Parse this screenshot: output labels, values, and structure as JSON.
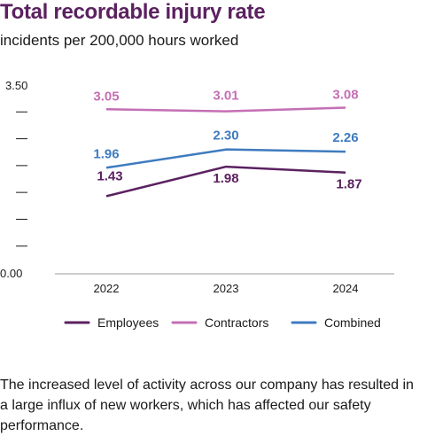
{
  "header": {
    "title": "Total recordable injury rate",
    "subtitle": "incidents per 200,000 hours worked"
  },
  "chart_data": {
    "type": "line",
    "title": "Total recordable injury rate",
    "subtitle": "incidents per 200,000 hours worked",
    "xlabel": "",
    "ylabel": "",
    "categories": [
      "2022",
      "2023",
      "2024"
    ],
    "ylim": [
      0,
      3.5
    ],
    "ytick_labels": [
      "3.50",
      "0.00"
    ],
    "grid": false,
    "legend_position": "bottom",
    "series": [
      {
        "name": "Employees",
        "color": "#5b2160",
        "values": [
          1.43,
          1.98,
          1.87
        ],
        "labels": [
          "1.43",
          "1.98",
          "1.87"
        ]
      },
      {
        "name": "Contractors",
        "color": "#c46fb5",
        "values": [
          3.05,
          3.01,
          3.08
        ],
        "labels": [
          "3.05",
          "3.01",
          "3.08"
        ]
      },
      {
        "name": "Combined",
        "color": "#3f7bbf",
        "values": [
          1.96,
          2.3,
          2.26
        ],
        "labels": [
          "1.96",
          "2.30",
          "2.26"
        ]
      }
    ]
  },
  "body": {
    "text": "The increased level of activity across our company has resulted in a large influx of new workers, which has affected our safety performance."
  }
}
